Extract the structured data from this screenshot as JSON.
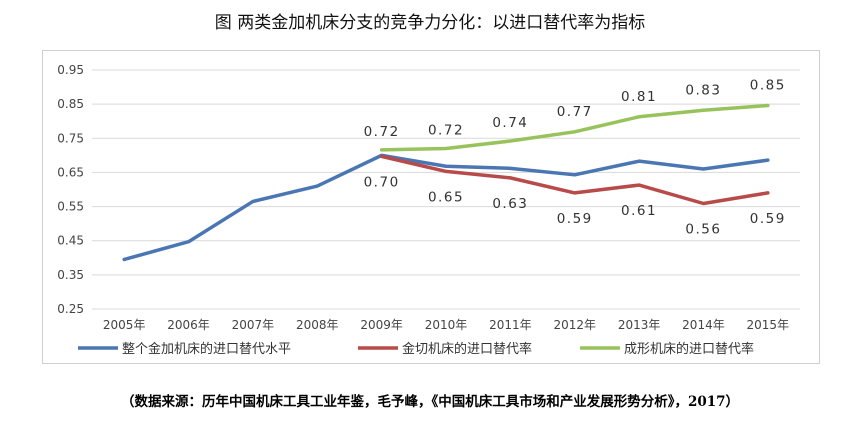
{
  "title": "图 两类金加机床分支的竞争力分化：以进口替代率为指标",
  "source": "（数据来源：历年中国机床工具工业年鉴，毛予峰，《中国机床工具市场和产业发展形势分析》，2017）",
  "chart_data": {
    "type": "line",
    "categories": [
      "2005年",
      "2006年",
      "2007年",
      "2008年",
      "2009年",
      "2010年",
      "2011年",
      "2012年",
      "2013年",
      "2014年",
      "2015年"
    ],
    "y_ticks": [
      "0.25",
      "0.35",
      "0.45",
      "0.55",
      "0.65",
      "0.75",
      "0.85",
      "0.95"
    ],
    "ylim": [
      0.25,
      0.95
    ],
    "grid": true,
    "legend_position": "bottom",
    "series": [
      {
        "name": "整个金加机床的进口替代水平",
        "color": "#4a76b3",
        "values": [
          0.395,
          0.447,
          0.565,
          0.61,
          0.7,
          0.668,
          0.662,
          0.643,
          0.683,
          0.66,
          0.686
        ],
        "labels": []
      },
      {
        "name": "金切机床的进口替代率",
        "color": "#b84a4a",
        "values": [
          null,
          null,
          null,
          null,
          0.697,
          0.653,
          0.634,
          0.59,
          0.613,
          0.559,
          0.59
        ],
        "labels": [
          "",
          "",
          "",
          "",
          "0.70",
          "0.65",
          "0.63",
          "0.59",
          "0.61",
          "0.56",
          "0.59"
        ]
      },
      {
        "name": "成形机床的进口替代率",
        "color": "#98c35c",
        "values": [
          null,
          null,
          null,
          null,
          0.716,
          0.72,
          0.742,
          0.769,
          0.813,
          0.832,
          0.846
        ],
        "labels": [
          "",
          "",
          "",
          "",
          "0.72",
          "0.72",
          "0.74",
          "0.77",
          "0.81",
          "0.83",
          "0.85"
        ]
      }
    ]
  }
}
